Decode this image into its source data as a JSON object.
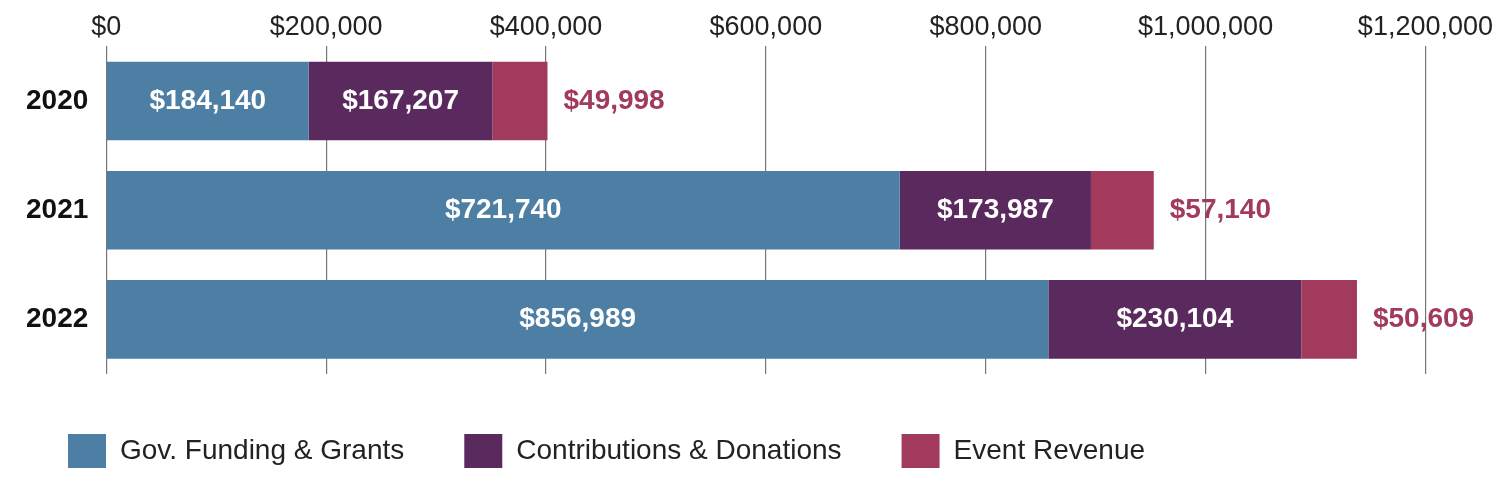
{
  "chart_data": {
    "type": "bar",
    "orientation": "horizontal",
    "stacked": true,
    "categories": [
      "2020",
      "2021",
      "2022"
    ],
    "series": [
      {
        "name": "Gov. Funding & Grants",
        "color": "#4d7ea3",
        "values": [
          184140,
          721740,
          856989
        ],
        "value_labels": [
          "$184,140",
          "$721,740",
          "$856,989"
        ]
      },
      {
        "name": "Contributions & Donations",
        "color": "#5a2a5e",
        "values": [
          167207,
          173987,
          230104
        ],
        "value_labels": [
          "$167,207",
          "$173,987",
          "$230,104"
        ]
      },
      {
        "name": "Event Revenue",
        "color": "#a23a5e",
        "values": [
          49998,
          57140,
          50609
        ],
        "value_labels": [
          "$49,998",
          "$57,140",
          "$50,609"
        ]
      }
    ],
    "xlim": [
      0,
      1200000
    ],
    "xticks": [
      {
        "value": 0,
        "label": "$0"
      },
      {
        "value": 200000,
        "label": "$200,000"
      },
      {
        "value": 400000,
        "label": "$400,000"
      },
      {
        "value": 600000,
        "label": "$600,000"
      },
      {
        "value": 800000,
        "label": "$800,000"
      },
      {
        "value": 1000000,
        "label": "$1,000,000"
      },
      {
        "value": 1200000,
        "label": "$1,200,000"
      }
    ],
    "grid": "x",
    "legend": "bottom"
  }
}
